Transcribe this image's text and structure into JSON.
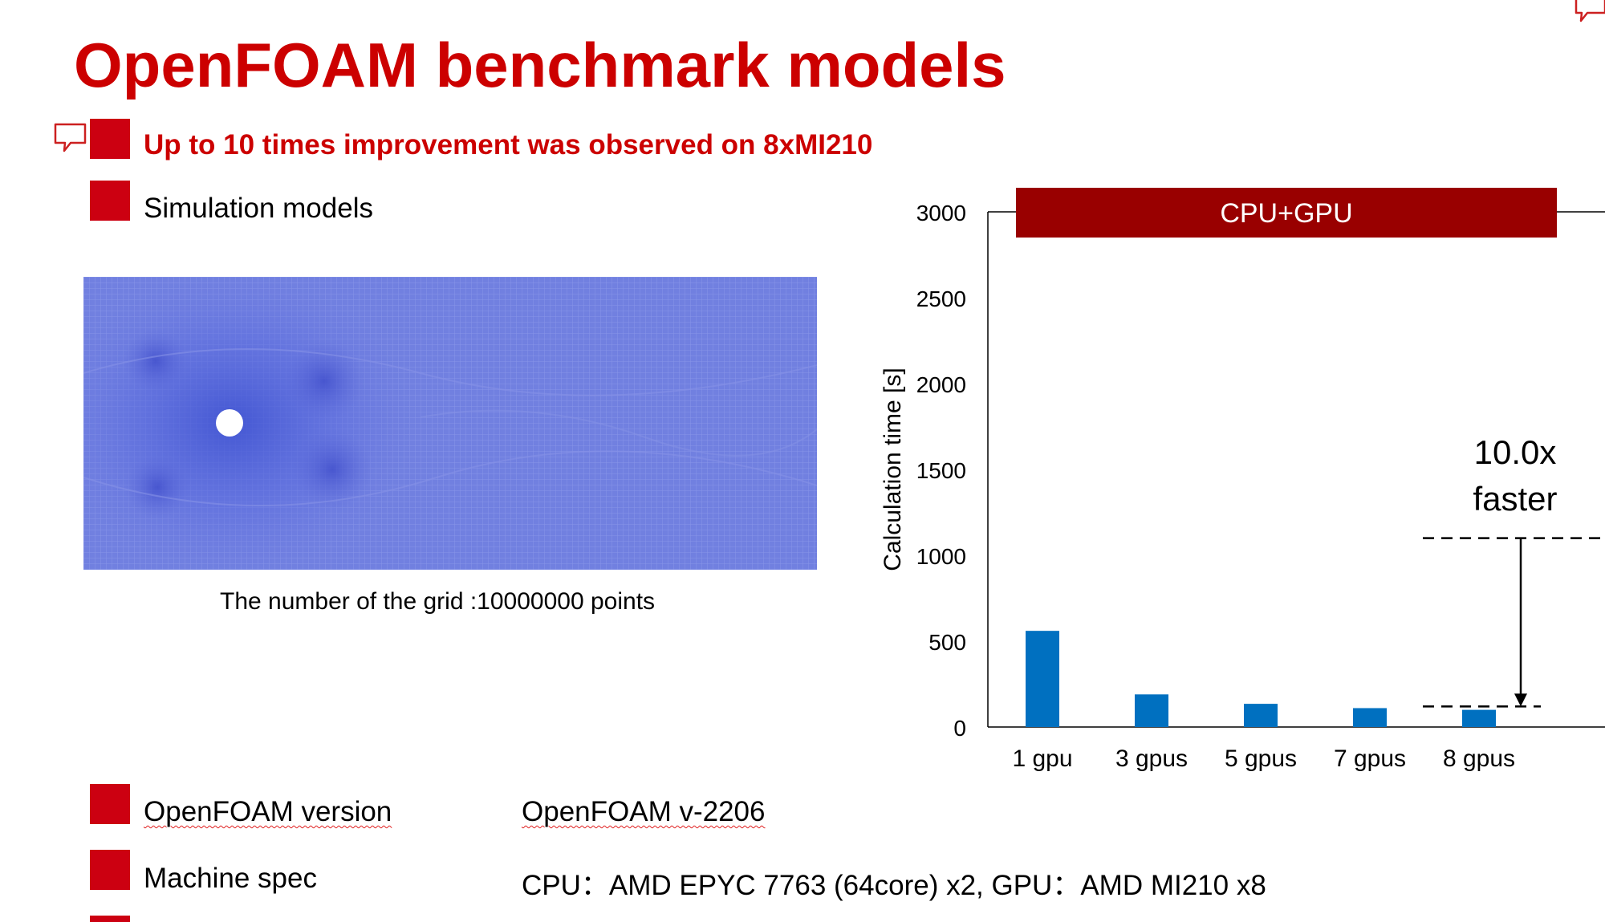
{
  "slide": {
    "title": "OpenFOAM benchmark models",
    "bullets": [
      {
        "text": "Up to 10 times improvement was observed on 8xMI210"
      },
      {
        "text": "Simulation models"
      }
    ],
    "figure_caption": "The number of the grid :10000000 points",
    "specs": [
      {
        "label": "OpenFOAM version",
        "value": "OpenFOAM v-2206"
      },
      {
        "label": "Machine spec",
        "value": "CPU：AMD EPYC 7763 (64core) x2,  GPU：AMD MI210 x8"
      }
    ]
  },
  "colors": {
    "accent": "#cc0000",
    "bar": "#0070c0",
    "banner": "#990000"
  },
  "chart_data": {
    "type": "bar",
    "banner": "CPU+GPU",
    "categories": [
      "1 gpu",
      "3 gpus",
      "5 gpus",
      "7 gpus",
      "8 gpus"
    ],
    "values": [
      560,
      190,
      135,
      110,
      100
    ],
    "ylabel": "Calculation time [s]",
    "xlabel": "",
    "ylim": [
      0,
      3000
    ],
    "yticks": [
      0,
      500,
      1000,
      1500,
      2000,
      2500,
      3000
    ],
    "annotation": {
      "line1": "10.0x",
      "line2": "faster",
      "from_value": 1100,
      "to_value": 120
    },
    "grid": false
  }
}
